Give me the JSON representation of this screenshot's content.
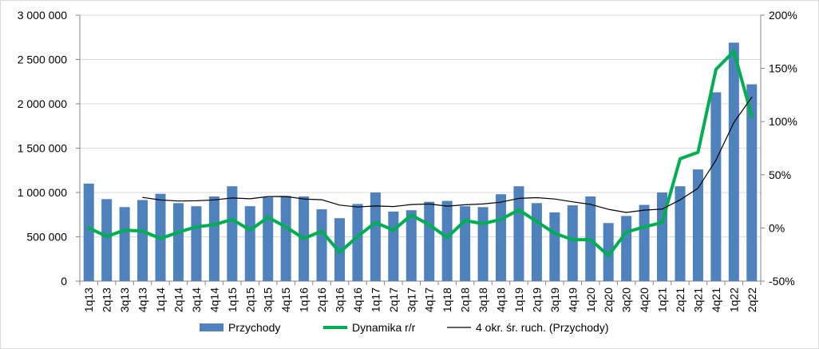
{
  "chart_data": {
    "type": "bar",
    "categories": [
      "1q13",
      "2q13",
      "3q13",
      "4q13",
      "1q14",
      "2q14",
      "3q14",
      "4q14",
      "1q15",
      "2q15",
      "3q15",
      "4q15",
      "1q16",
      "2q16",
      "3q16",
      "4q16",
      "1q17",
      "2q17",
      "3q17",
      "4q17",
      "1q18",
      "2q18",
      "3q18",
      "4q18",
      "1q19",
      "2q19",
      "3q19",
      "4q19",
      "1q20",
      "2q20",
      "3q20",
      "4q20",
      "1q21",
      "2q21",
      "3q21",
      "4q21",
      "1q22",
      "2q22"
    ],
    "series": [
      {
        "name": "Przychody",
        "type": "bar",
        "axis": "left",
        "color": "#4f81bd",
        "values": [
          1100000,
          925000,
          835000,
          915000,
          985000,
          880000,
          845000,
          955000,
          1070000,
          845000,
          945000,
          960000,
          955000,
          810000,
          710000,
          870000,
          1000000,
          785000,
          800000,
          895000,
          905000,
          845000,
          835000,
          980000,
          1070000,
          880000,
          775000,
          855000,
          955000,
          655000,
          735000,
          860000,
          1000000,
          1070000,
          1260000,
          2130000,
          2690000,
          2220000
        ]
      },
      {
        "name": "Dynamika r/r",
        "type": "line",
        "axis": "right",
        "color": "#00b050",
        "values": [
          0,
          -8,
          -2,
          -3,
          -10,
          -4,
          1,
          3,
          8,
          -2,
          10,
          1,
          -10,
          -3,
          -23,
          -8,
          5,
          -2,
          12,
          3,
          -9,
          7,
          4,
          8,
          17,
          6,
          -5,
          -11,
          -11,
          -26,
          -4,
          1,
          5,
          65,
          71,
          149,
          166,
          105
        ]
      },
      {
        "name": "4 okr. śr. ruch. (Przychody)",
        "type": "line",
        "axis": "left",
        "color": "#000000",
        "values": [
          null,
          null,
          null,
          944000,
          915000,
          904000,
          906000,
          916000,
          938000,
          929000,
          954000,
          955000,
          926000,
          918000,
          858000,
          836000,
          848000,
          841000,
          864000,
          870000,
          846000,
          861000,
          870000,
          891000,
          933000,
          941000,
          926000,
          895000,
          866000,
          810000,
          775000,
          801000,
          813000,
          916000,
          1048000,
          1365000,
          1788000,
          2075000
        ]
      }
    ],
    "y_left": {
      "min": 0,
      "max": 3000000,
      "ticks": [
        "0",
        "500 000",
        "1 000 000",
        "1 500 000",
        "2 000 000",
        "2 500 000",
        "3 000 000"
      ]
    },
    "y_right": {
      "min": -50,
      "max": 200,
      "ticks": [
        "-50%",
        "0%",
        "50%",
        "100%",
        "150%",
        "200%"
      ]
    },
    "title": "",
    "xlabel": "",
    "ylabel": "",
    "grid": true,
    "legend_position": "bottom"
  }
}
